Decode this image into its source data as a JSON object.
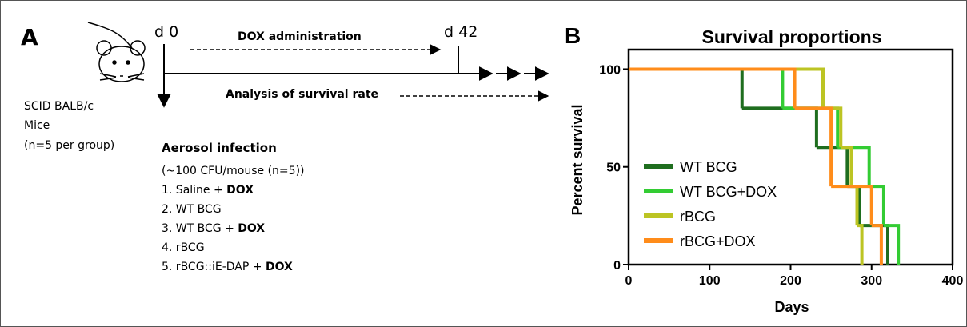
{
  "panel_a": {
    "label": "A",
    "timepoint_start": "d 0",
    "timepoint_end": "d 42",
    "treatment": "DOX administration",
    "analysis": "Analysis of survival rate",
    "subjects": [
      "SCID BALB/c",
      "Mice",
      "(n=5 per group)"
    ],
    "infection": {
      "title": "Aerosol infection",
      "dose": "(~100 CFU/mouse (n=5))",
      "groups": [
        [
          "1. Saline + ",
          "DOX"
        ],
        [
          "2. WT BCG"
        ],
        [
          "3. WT BCG + ",
          "DOX"
        ],
        [
          "4. rBCG"
        ],
        [
          "5. rBCG::iE-DAP + ",
          "DOX"
        ]
      ]
    }
  },
  "chart_data": {
    "type": "survival",
    "panel_label": "B",
    "title": "Survival proportions",
    "x_label": "Days",
    "y_label": "Percent survival",
    "xlim": [
      0,
      400
    ],
    "ylim": [
      0,
      110
    ],
    "xticks": [
      0,
      100,
      200,
      300,
      400
    ],
    "yticks": [
      0,
      50,
      100
    ],
    "legend": "left",
    "series": [
      {
        "name": "WT BCG",
        "color": "#1f6e1f",
        "x": [
          0,
          140,
          232,
          270,
          285,
          320
        ],
        "values": [
          100,
          80,
          60,
          40,
          20,
          0
        ]
      },
      {
        "name": "WT BCG+DOX",
        "color": "#33cc33",
        "x": [
          0,
          190,
          258,
          297,
          315,
          333
        ],
        "values": [
          100,
          80,
          60,
          40,
          20,
          0
        ]
      },
      {
        "name": "rBCG",
        "color": "#bcc423",
        "x": [
          0,
          240,
          262,
          275,
          282,
          288
        ],
        "values": [
          100,
          80,
          60,
          40,
          20,
          0
        ]
      },
      {
        "name": "rBCG+DOX",
        "color": "#ff8c1a",
        "x": [
          0,
          205,
          250,
          300,
          312
        ],
        "values": [
          100,
          80,
          40,
          20,
          0
        ]
      }
    ]
  }
}
